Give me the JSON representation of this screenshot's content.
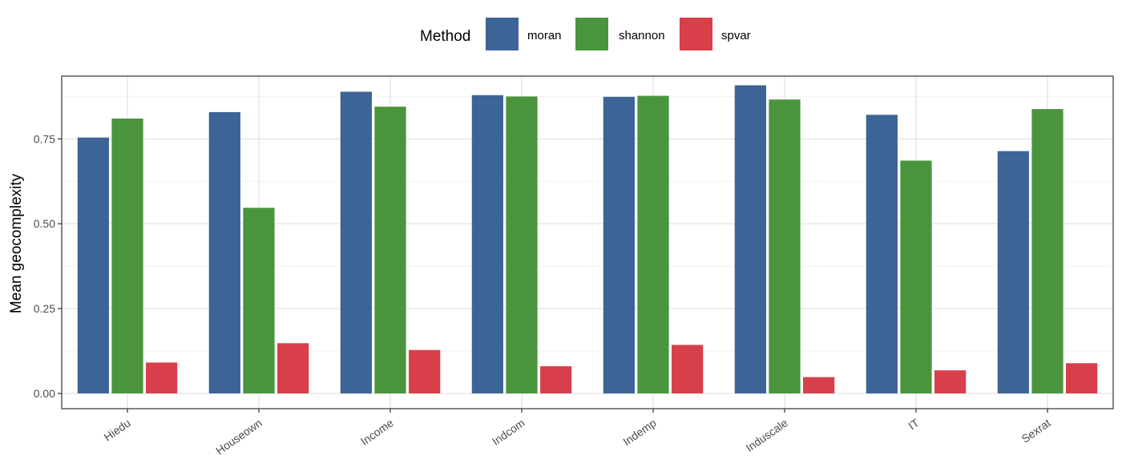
{
  "chart_data": {
    "type": "bar",
    "title": "",
    "xlabel": "",
    "ylabel": "Mean geocomplexity",
    "ylim": [
      -0.045,
      0.935
    ],
    "yticks": [
      0.0,
      0.25,
      0.5,
      0.75
    ],
    "ytick_labels": [
      "0.00",
      "0.25",
      "0.50",
      "0.75"
    ],
    "grid": true,
    "legend": {
      "title": "Method",
      "placement": "top"
    },
    "categories": [
      "Hiedu",
      "Houseown",
      "Income",
      "Indcom",
      "Indemp",
      "Induscale",
      "IT",
      "Sexrat"
    ],
    "series": [
      {
        "name": "moran",
        "color": "#3d6496",
        "values": [
          0.754,
          0.829,
          0.889,
          0.879,
          0.874,
          0.908,
          0.821,
          0.714
        ]
      },
      {
        "name": "shannon",
        "color": "#4a943e",
        "values": [
          0.81,
          0.547,
          0.845,
          0.875,
          0.877,
          0.866,
          0.686,
          0.838
        ]
      },
      {
        "name": "spvar",
        "color": "#d7404a",
        "values": [
          0.091,
          0.148,
          0.128,
          0.08,
          0.143,
          0.048,
          0.068,
          0.089
        ]
      }
    ]
  }
}
